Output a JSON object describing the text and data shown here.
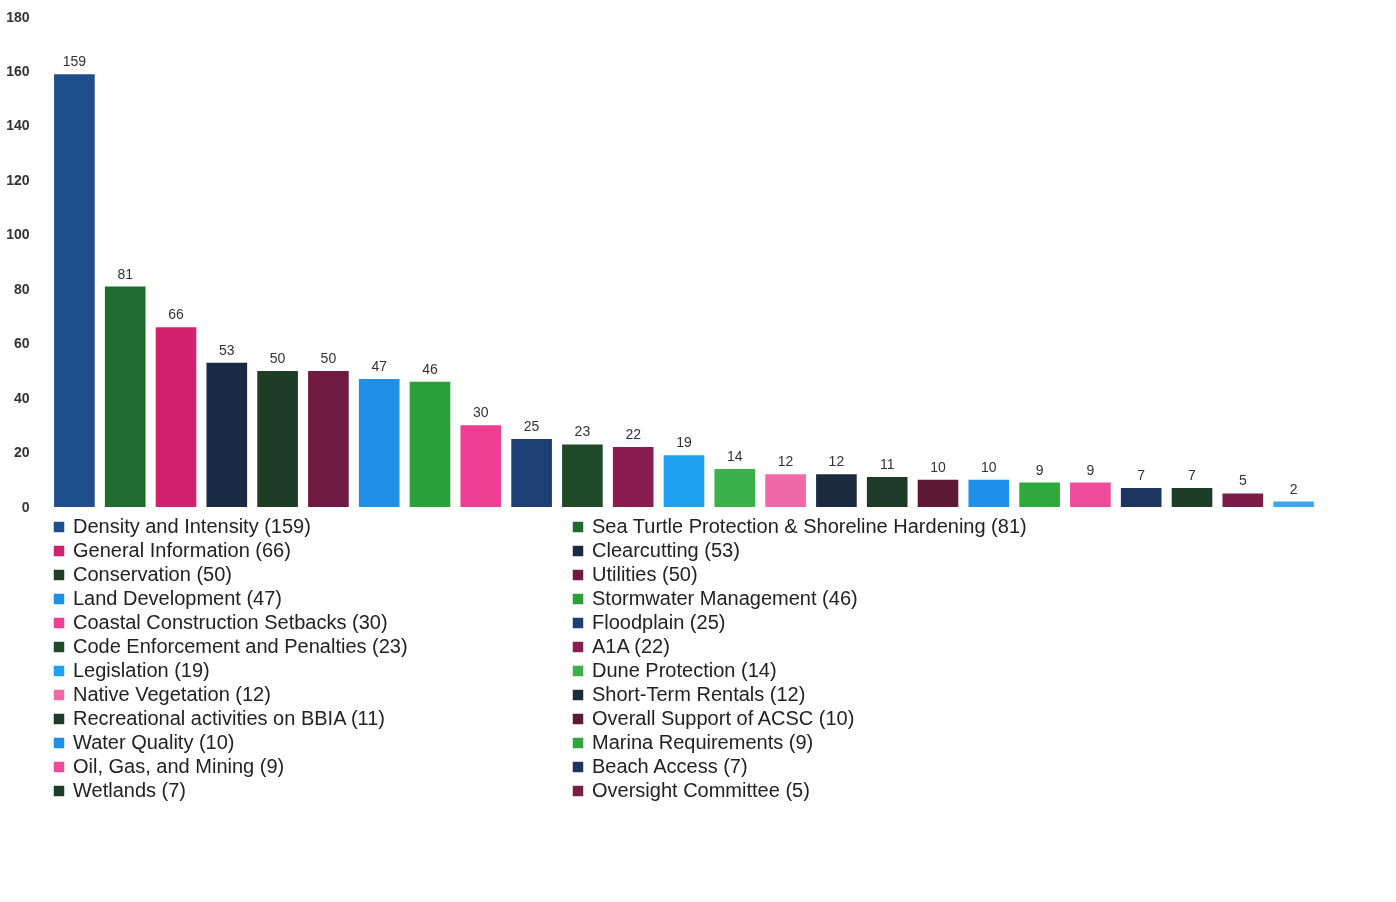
{
  "chart_data": {
    "type": "bar",
    "stacked": true,
    "categories": [
      null,
      null,
      null,
      null,
      null,
      null,
      null,
      null,
      null,
      null,
      null,
      null,
      null,
      null,
      null,
      null,
      null,
      null,
      null,
      null,
      null,
      null,
      null,
      null,
      null
    ],
    "series": [
      {
        "name": "Density and Intensity (159)",
        "color": "#1f4e8c",
        "values": [
          159,
          null,
          null,
          null,
          null,
          null,
          null,
          null,
          null,
          null,
          null,
          null,
          null,
          null,
          null,
          null,
          null,
          null,
          null,
          null,
          null,
          null,
          null,
          null,
          null
        ]
      },
      {
        "name": "Sea Turtle Protection & Shoreline Hardening (81)",
        "color": "#1e6b2e",
        "values": [
          null,
          81,
          null,
          null,
          null,
          null,
          null,
          null,
          null,
          null,
          null,
          null,
          null,
          null,
          null,
          null,
          null,
          null,
          null,
          null,
          null,
          null,
          null,
          null,
          null
        ]
      },
      {
        "name": "General Information (66)",
        "color": "#d0206e",
        "values": [
          null,
          null,
          66,
          null,
          null,
          null,
          null,
          null,
          null,
          null,
          null,
          null,
          null,
          null,
          null,
          null,
          null,
          null,
          null,
          null,
          null,
          null,
          null,
          null,
          null
        ]
      },
      {
        "name": "Clearcutting (53)",
        "color": "#1b2a44",
        "values": [
          null,
          null,
          null,
          53,
          null,
          null,
          null,
          null,
          null,
          null,
          null,
          null,
          null,
          null,
          null,
          null,
          null,
          null,
          null,
          null,
          null,
          null,
          null,
          null,
          null
        ]
      },
      {
        "name": "Conservation (50)",
        "color": "#1f3d26",
        "values": [
          null,
          null,
          null,
          null,
          50,
          null,
          null,
          null,
          null,
          null,
          null,
          null,
          null,
          null,
          null,
          null,
          null,
          null,
          null,
          null,
          null,
          null,
          null,
          null,
          null
        ]
      },
      {
        "name": "Utilities (50)",
        "color": "#6e1a43",
        "values": [
          null,
          null,
          null,
          null,
          null,
          50,
          null,
          null,
          null,
          null,
          null,
          null,
          null,
          null,
          null,
          null,
          null,
          null,
          null,
          null,
          null,
          null,
          null,
          null,
          null
        ]
      },
      {
        "name": "Land Development (47)",
        "color": "#1f8fe8",
        "values": [
          null,
          null,
          null,
          null,
          null,
          null,
          47,
          null,
          null,
          null,
          null,
          null,
          null,
          null,
          null,
          null,
          null,
          null,
          null,
          null,
          null,
          null,
          null,
          null,
          null
        ]
      },
      {
        "name": "Stormwater Management (46)",
        "color": "#2aa03a",
        "values": [
          null,
          null,
          null,
          null,
          null,
          null,
          null,
          46,
          null,
          null,
          null,
          null,
          null,
          null,
          null,
          null,
          null,
          null,
          null,
          null,
          null,
          null,
          null,
          null,
          null
        ]
      },
      {
        "name": "Coastal Construction Setbacks (30)",
        "color": "#ee3f95",
        "values": [
          null,
          null,
          null,
          null,
          null,
          null,
          null,
          null,
          30,
          null,
          null,
          null,
          null,
          null,
          null,
          null,
          null,
          null,
          null,
          null,
          null,
          null,
          null,
          null,
          null
        ]
      },
      {
        "name": "Floodplain (25)",
        "color": "#1d3f73",
        "values": [
          null,
          null,
          null,
          null,
          null,
          null,
          null,
          null,
          null,
          25,
          null,
          null,
          null,
          null,
          null,
          null,
          null,
          null,
          null,
          null,
          null,
          null,
          null,
          null,
          null
        ]
      },
      {
        "name": "Code Enforcement and Penalties (23)",
        "color": "#1f4a2a",
        "values": [
          null,
          null,
          null,
          null,
          null,
          null,
          null,
          null,
          null,
          null,
          23,
          null,
          null,
          null,
          null,
          null,
          null,
          null,
          null,
          null,
          null,
          null,
          null,
          null,
          null
        ]
      },
      {
        "name": "A1A (22)",
        "color": "#8a1d4f",
        "values": [
          null,
          null,
          null,
          null,
          null,
          null,
          null,
          null,
          null,
          null,
          null,
          22,
          null,
          null,
          null,
          null,
          null,
          null,
          null,
          null,
          null,
          null,
          null,
          null,
          null
        ]
      },
      {
        "name": "Legislation (19)",
        "color": "#1fa1f0",
        "values": [
          null,
          null,
          null,
          null,
          null,
          null,
          null,
          null,
          null,
          null,
          null,
          null,
          19,
          null,
          null,
          null,
          null,
          null,
          null,
          null,
          null,
          null,
          null,
          null,
          null
        ]
      },
      {
        "name": "Dune Protection (14)",
        "color": "#3cb04a",
        "values": [
          null,
          null,
          null,
          null,
          null,
          null,
          null,
          null,
          null,
          null,
          null,
          null,
          null,
          14,
          null,
          null,
          null,
          null,
          null,
          null,
          null,
          null,
          null,
          null,
          null
        ]
      },
      {
        "name": "Native Vegetation (12)",
        "color": "#f06aa8",
        "values": [
          null,
          null,
          null,
          null,
          null,
          null,
          null,
          null,
          null,
          null,
          null,
          null,
          null,
          null,
          12,
          null,
          null,
          null,
          null,
          null,
          null,
          null,
          null,
          null,
          null
        ]
      },
      {
        "name": "Short-Term Rentals (12)",
        "color": "#1c2a3e",
        "values": [
          null,
          null,
          null,
          null,
          null,
          null,
          null,
          null,
          null,
          null,
          null,
          null,
          null,
          null,
          null,
          12,
          null,
          null,
          null,
          null,
          null,
          null,
          null,
          null,
          null
        ]
      },
      {
        "name": "Recreational activities on BBIA (11)",
        "color": "#1e3a28",
        "values": [
          null,
          null,
          null,
          null,
          null,
          null,
          null,
          null,
          null,
          null,
          null,
          null,
          null,
          null,
          null,
          null,
          11,
          null,
          null,
          null,
          null,
          null,
          null,
          null,
          null
        ]
      },
      {
        "name": "Overall Support of ACSC (10)",
        "color": "#5c1a35",
        "values": [
          null,
          null,
          null,
          null,
          null,
          null,
          null,
          null,
          null,
          null,
          null,
          null,
          null,
          null,
          null,
          null,
          null,
          10,
          null,
          null,
          null,
          null,
          null,
          null,
          null
        ]
      },
      {
        "name": "Water Quality (10)",
        "color": "#1e90ea",
        "values": [
          null,
          null,
          null,
          null,
          null,
          null,
          null,
          null,
          null,
          null,
          null,
          null,
          null,
          null,
          null,
          null,
          null,
          null,
          10,
          null,
          null,
          null,
          null,
          null,
          null
        ]
      },
      {
        "name": "Marina Requirements (9)",
        "color": "#2fa83c",
        "values": [
          null,
          null,
          null,
          null,
          null,
          null,
          null,
          null,
          null,
          null,
          null,
          null,
          null,
          null,
          null,
          null,
          null,
          null,
          null,
          9,
          null,
          null,
          null,
          null,
          null
        ]
      },
      {
        "name": "Oil, Gas, and Mining  (9)",
        "color": "#ee4c9a",
        "values": [
          null,
          null,
          null,
          null,
          null,
          null,
          null,
          null,
          null,
          null,
          null,
          null,
          null,
          null,
          null,
          null,
          null,
          null,
          null,
          null,
          9,
          null,
          null,
          null,
          null
        ]
      },
      {
        "name": "Beach Access  (7)",
        "color": "#1d3560",
        "values": [
          null,
          null,
          null,
          null,
          null,
          null,
          null,
          null,
          null,
          null,
          null,
          null,
          null,
          null,
          null,
          null,
          null,
          null,
          null,
          null,
          null,
          7,
          null,
          null,
          null
        ]
      },
      {
        "name": "Wetlands  (7)",
        "color": "#1e3d28",
        "values": [
          null,
          null,
          null,
          null,
          null,
          null,
          null,
          null,
          null,
          null,
          null,
          null,
          null,
          null,
          null,
          null,
          null,
          null,
          null,
          null,
          null,
          null,
          7,
          null,
          null
        ]
      },
      {
        "name": "Oversight Committee (5)",
        "color": "#7a1d48",
        "values": [
          null,
          null,
          null,
          null,
          null,
          null,
          null,
          null,
          null,
          null,
          null,
          null,
          null,
          null,
          null,
          null,
          null,
          null,
          null,
          null,
          null,
          null,
          null,
          5,
          null
        ]
      },
      {
        "color": "#3aa8f0",
        "values": [
          null,
          null,
          null,
          null,
          null,
          null,
          null,
          null,
          null,
          null,
          null,
          null,
          null,
          null,
          null,
          null,
          null,
          null,
          null,
          null,
          null,
          null,
          null,
          null,
          2
        ]
      }
    ],
    "ylim": [
      0,
      180
    ],
    "yticks": [
      0,
      20,
      40,
      60,
      80,
      100,
      120,
      140,
      160,
      180
    ],
    "grid": false,
    "data_labels": true,
    "legend": "bottom",
    "tick_labels": "y"
  }
}
